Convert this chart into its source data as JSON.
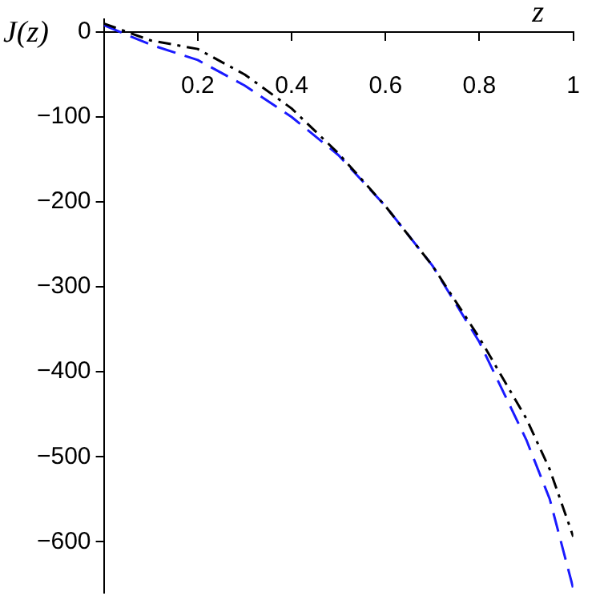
{
  "chart_data": {
    "type": "line",
    "xlabel": "z",
    "ylabel": "J(z)",
    "xlim": [
      0,
      1
    ],
    "ylim": [
      -660,
      15
    ],
    "xticks": [
      0.2,
      0.4,
      0.6,
      0.8,
      1
    ],
    "yticks": [
      0,
      -100,
      -200,
      -300,
      -400,
      -500,
      -600
    ],
    "grid": false,
    "legend": false,
    "marker": "none",
    "x": [
      0,
      0.1,
      0.2,
      0.3,
      0.4,
      0.5,
      0.6,
      0.7,
      0.8,
      0.9,
      0.95,
      1
    ],
    "series": [
      {
        "color": "#000000",
        "line_style": "dashdot",
        "values": [
          10,
          -10,
          -20,
          -50,
          -90,
          -143,
          -205,
          -275,
          -360,
          -455,
          -515,
          -594
        ]
      },
      {
        "color": "#1a1aff",
        "line_style": "dashed",
        "values": [
          8,
          -15,
          -33,
          -63,
          -100,
          -145,
          -205,
          -275,
          -365,
          -480,
          -550,
          -655
        ]
      }
    ]
  }
}
